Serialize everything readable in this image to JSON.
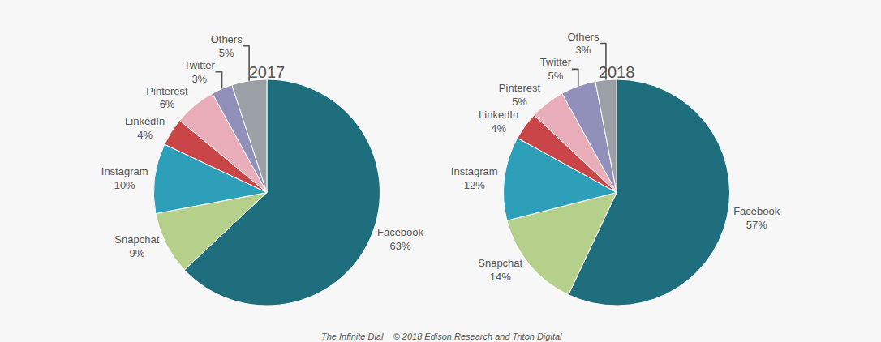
{
  "chart_data": [
    {
      "type": "pie",
      "title": "2017",
      "categories": [
        "Facebook",
        "Snapchat",
        "Instagram",
        "LinkedIn",
        "Pinterest",
        "Twitter",
        "Others"
      ],
      "values": [
        63,
        9,
        10,
        4,
        6,
        3,
        5
      ],
      "value_labels": [
        "63%",
        "9%",
        "10%",
        "4%",
        "6%",
        "3%",
        "5%"
      ],
      "colors": [
        "#1e6e7e",
        "#b5d08a",
        "#2e9fb8",
        "#c94548",
        "#e8adb8",
        "#9090bb",
        "#9aa0a6"
      ],
      "data_labels": true,
      "annotations": [
        "The Infinite Dial    © 2018 Edison Research and Triton Digital"
      ]
    },
    {
      "type": "pie",
      "title": "2018",
      "categories": [
        "Facebook",
        "Snapchat",
        "Instagram",
        "LinkedIn",
        "Pinterest",
        "Twitter",
        "Others"
      ],
      "values": [
        57,
        14,
        12,
        4,
        5,
        5,
        3
      ],
      "value_labels": [
        "57%",
        "14%",
        "12%",
        "4%",
        "5%",
        "5%",
        "3%"
      ],
      "colors": [
        "#1e6e7e",
        "#b5d08a",
        "#2e9fb8",
        "#c94548",
        "#e8adb8",
        "#9090bb",
        "#9aa0a6"
      ],
      "data_labels": true
    }
  ]
}
